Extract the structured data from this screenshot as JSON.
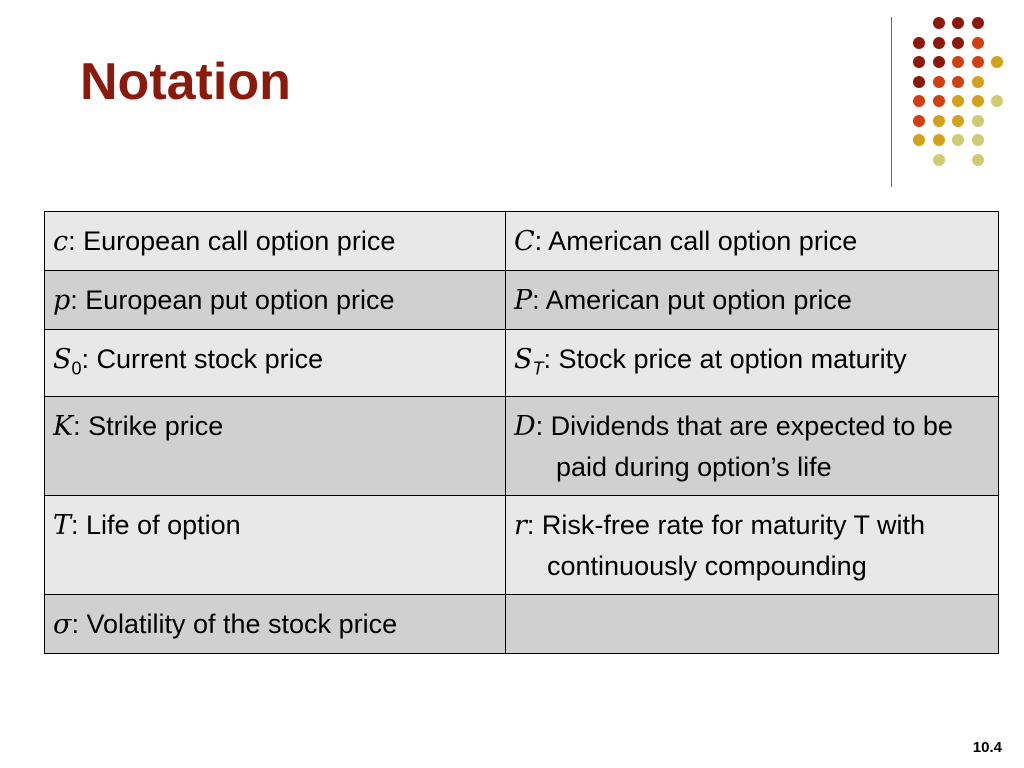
{
  "slide": {
    "title": "Notation",
    "page_number": "10.4"
  },
  "decoration": {
    "dot_colors": {
      "maroon": "#8b1a0c",
      "red_orange": "#d14010",
      "gold": "#d4a21a",
      "khaki": "#cfcb74"
    }
  },
  "table": {
    "rows": [
      {
        "left": {
          "symbol": "c",
          "text": ": European call option price"
        },
        "right": {
          "symbol": "C",
          "text": ": American call option price"
        }
      },
      {
        "left": {
          "symbol": "p",
          "text": ": European put option price"
        },
        "right": {
          "symbol": "P",
          "text": ": American put option price"
        }
      },
      {
        "left": {
          "symbol": "S",
          "subscript": "0",
          "text": ": Current stock price"
        },
        "right": {
          "symbol": "S",
          "subscript": "T",
          "text": ": Stock price at option maturity"
        }
      },
      {
        "left": {
          "symbol": "K",
          "text": ": Strike price"
        },
        "right": {
          "symbol": "D",
          "text": ": Dividends that are expected to be paid during option’s life"
        }
      },
      {
        "left": {
          "symbol": "T",
          "text": ": Life of option"
        },
        "right": {
          "symbol": "r",
          "text": ": Risk-free rate for maturity T with continuously compounding"
        }
      },
      {
        "left": {
          "symbol": "σ",
          "text": ": Volatility of the stock price"
        },
        "right": {
          "symbol": "",
          "text": ""
        }
      }
    ]
  }
}
